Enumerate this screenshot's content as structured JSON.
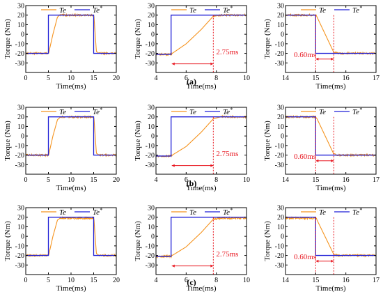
{
  "colors": {
    "te": "#f5931e",
    "te_ref": "#1f1fd6",
    "annotation": "#e8141e",
    "frame": "#000000"
  },
  "rows": [
    {
      "label": "(a)"
    },
    {
      "label": "(b)"
    },
    {
      "label": "(c)"
    }
  ],
  "chart_data": [
    {
      "type": "line",
      "row": "(a)",
      "xlabel": "Time(ms)",
      "ylabel": "Torque (Nm)",
      "xlim": [
        0,
        20
      ],
      "ylim": [
        -40,
        30
      ],
      "xticks": [
        0,
        5,
        10,
        15,
        20
      ],
      "yticks": [
        -30,
        -20,
        -10,
        0,
        10,
        20,
        30
      ],
      "legend": "top",
      "series": [
        {
          "name": "Te",
          "x": [
            0,
            4.9,
            5.05,
            6.0,
            7.0,
            7.5,
            14.9,
            15.05,
            15.6,
            16.2,
            20
          ],
          "y": [
            -20,
            -20,
            -20,
            0,
            18,
            20,
            20,
            20,
            -18,
            -20,
            -20
          ]
        },
        {
          "name": "Te*",
          "x": [
            0,
            5,
            5,
            15,
            15,
            20
          ],
          "y": [
            -20,
            -20,
            20,
            20,
            -20,
            -20
          ]
        }
      ],
      "annotations": []
    },
    {
      "type": "line",
      "row": "(a)",
      "xlabel": "Time(ms)",
      "ylabel": "Torque (Nm)",
      "xlim": [
        4,
        10
      ],
      "ylim": [
        -40,
        30
      ],
      "xticks": [
        4,
        6,
        8,
        10
      ],
      "yticks": [
        -30,
        -20,
        -10,
        0,
        10,
        20,
        30
      ],
      "legend": "top",
      "series": [
        {
          "name": "Te",
          "x": [
            4,
            5.0,
            5.08,
            6.0,
            7.0,
            7.8,
            8.3,
            10
          ],
          "y": [
            -21,
            -21,
            -20,
            -10,
            5,
            19,
            20,
            20
          ]
        },
        {
          "name": "Te*",
          "x": [
            4,
            5,
            5,
            10
          ],
          "y": [
            -21,
            -21,
            20,
            20
          ]
        }
      ],
      "annotations": [
        {
          "text": "2.75ms",
          "x_start": 5.05,
          "x_end": 7.8
        }
      ]
    },
    {
      "type": "line",
      "row": "(a)",
      "xlabel": "Time(ms)",
      "ylabel": "Torque (Nm)",
      "xlim": [
        14,
        17
      ],
      "ylim": [
        -40,
        30
      ],
      "xticks": [
        14,
        15,
        16,
        17
      ],
      "yticks": [
        -30,
        -20,
        -10,
        0,
        10,
        20,
        30
      ],
      "legend": "top",
      "series": [
        {
          "name": "Te",
          "x": [
            14,
            15.0,
            15.03,
            15.6,
            15.75,
            17
          ],
          "y": [
            20,
            20,
            19,
            -19,
            -20,
            -20
          ]
        },
        {
          "name": "Te*",
          "x": [
            14,
            15,
            15,
            17
          ],
          "y": [
            20,
            20,
            -20,
            -20
          ]
        }
      ],
      "annotations": [
        {
          "text": "0.60ms",
          "x_start": 15.0,
          "x_end": 15.6
        }
      ]
    },
    {
      "type": "line",
      "row": "(b)",
      "xlabel": "Time(ms)",
      "ylabel": "Torque (Nm)",
      "xlim": [
        0,
        20
      ],
      "ylim": [
        -40,
        30
      ],
      "xticks": [
        0,
        5,
        10,
        15,
        20
      ],
      "yticks": [
        -30,
        -20,
        -10,
        0,
        10,
        20,
        30
      ],
      "legend": "top",
      "series": [
        {
          "name": "Te",
          "x": [
            0,
            4.9,
            5.05,
            6.0,
            7.0,
            7.7,
            14.9,
            15.05,
            15.6,
            16.2,
            20
          ],
          "y": [
            -20,
            -20,
            -20,
            0,
            17,
            20,
            20,
            20,
            -18,
            -20,
            -20
          ]
        },
        {
          "name": "Te*",
          "x": [
            0,
            5,
            5,
            15,
            15,
            20
          ],
          "y": [
            -20,
            -20,
            20,
            20,
            -20,
            -20
          ]
        }
      ],
      "annotations": []
    },
    {
      "type": "line",
      "row": "(b)",
      "xlabel": "Time(ms)",
      "ylabel": "Torque (Nm)",
      "xlim": [
        4,
        10
      ],
      "ylim": [
        -40,
        30
      ],
      "xticks": [
        4,
        6,
        8,
        10
      ],
      "yticks": [
        -30,
        -20,
        -10,
        0,
        10,
        20,
        30
      ],
      "legend": "top",
      "series": [
        {
          "name": "Te",
          "x": [
            4,
            5.0,
            5.08,
            6.0,
            7.0,
            7.8,
            8.3,
            10
          ],
          "y": [
            -21,
            -21,
            -20,
            -11,
            4,
            18,
            20,
            20
          ]
        },
        {
          "name": "Te*",
          "x": [
            4,
            5,
            5,
            10
          ],
          "y": [
            -21,
            -21,
            20,
            20
          ]
        }
      ],
      "annotations": [
        {
          "text": "2.75ms",
          "x_start": 5.05,
          "x_end": 7.8
        }
      ]
    },
    {
      "type": "line",
      "row": "(b)",
      "xlabel": "Time(ms)",
      "ylabel": "Torque (Nm)",
      "xlim": [
        14,
        17
      ],
      "ylim": [
        -40,
        30
      ],
      "xticks": [
        14,
        15,
        16,
        17
      ],
      "yticks": [
        -30,
        -20,
        -10,
        0,
        10,
        20,
        30
      ],
      "legend": "top",
      "series": [
        {
          "name": "Te",
          "x": [
            14,
            15.0,
            15.03,
            15.6,
            15.75,
            17
          ],
          "y": [
            20,
            20,
            19,
            -19,
            -20,
            -20
          ]
        },
        {
          "name": "Te*",
          "x": [
            14,
            15,
            15,
            17
          ],
          "y": [
            20,
            20,
            -20,
            -20
          ]
        }
      ],
      "annotations": [
        {
          "text": "0.60ms",
          "x_start": 15.0,
          "x_end": 15.6
        }
      ]
    },
    {
      "type": "line",
      "row": "(c)",
      "xlabel": "Time(ms)",
      "ylabel": "Torque (Nm)",
      "xlim": [
        0,
        20
      ],
      "ylim": [
        -40,
        30
      ],
      "xticks": [
        0,
        5,
        10,
        15,
        20
      ],
      "yticks": [
        -30,
        -20,
        -10,
        0,
        10,
        20,
        30
      ],
      "legend": "top",
      "series": [
        {
          "name": "Te",
          "x": [
            0,
            4.9,
            5.05,
            6.0,
            7.0,
            7.6,
            14.9,
            15.05,
            15.6,
            16.2,
            20
          ],
          "y": [
            -20,
            -20,
            -20,
            0,
            17,
            19,
            19,
            19,
            -18,
            -20,
            -20
          ]
        },
        {
          "name": "Te*",
          "x": [
            0,
            5,
            5,
            15,
            15,
            20
          ],
          "y": [
            -20,
            -20,
            20,
            20,
            -20,
            -20
          ]
        }
      ],
      "annotations": []
    },
    {
      "type": "line",
      "row": "(c)",
      "xlabel": "Time(ms)",
      "ylabel": "Torque (Nm)",
      "xlim": [
        4,
        10
      ],
      "ylim": [
        -40,
        30
      ],
      "xticks": [
        4,
        6,
        8,
        10
      ],
      "yticks": [
        -30,
        -20,
        -10,
        0,
        10,
        20,
        30
      ],
      "legend": "top",
      "series": [
        {
          "name": "Te",
          "x": [
            4,
            5.0,
            5.08,
            6.0,
            7.0,
            7.8,
            8.3,
            10
          ],
          "y": [
            -21,
            -21,
            -20,
            -11,
            4,
            18,
            19,
            19
          ]
        },
        {
          "name": "Te*",
          "x": [
            4,
            5,
            5,
            10
          ],
          "y": [
            -21,
            -21,
            20,
            20
          ]
        }
      ],
      "annotations": [
        {
          "text": "2.75ms",
          "x_start": 5.05,
          "x_end": 7.8
        }
      ]
    },
    {
      "type": "line",
      "row": "(c)",
      "xlabel": "Time(ms)",
      "ylabel": "Torque (Nm)",
      "xlim": [
        14,
        17
      ],
      "ylim": [
        -40,
        30
      ],
      "xticks": [
        14,
        15,
        16,
        17
      ],
      "yticks": [
        -30,
        -20,
        -10,
        0,
        10,
        20,
        30
      ],
      "legend": "top",
      "series": [
        {
          "name": "Te",
          "x": [
            14,
            15.0,
            15.03,
            15.6,
            15.75,
            17
          ],
          "y": [
            19,
            19,
            18,
            -19,
            -20,
            -20
          ]
        },
        {
          "name": "Te*",
          "x": [
            14,
            15,
            15,
            17
          ],
          "y": [
            20,
            20,
            -20,
            -20
          ]
        }
      ],
      "annotations": [
        {
          "text": "0.60ms",
          "x_start": 15.0,
          "x_end": 15.6
        }
      ]
    }
  ]
}
